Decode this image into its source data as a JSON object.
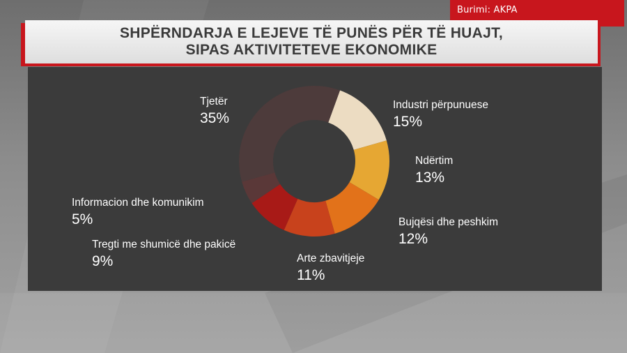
{
  "source": {
    "label": "Burimi: AKPA"
  },
  "title": {
    "line1": "SHPËRNDARJA E LEJEVE TË PUNËS PËR TË HUAJT,",
    "line2": "SIPAS AKTIVITETEVE EKONOMIKE"
  },
  "chart_data": {
    "type": "pie",
    "variant": "donut",
    "unit": "%",
    "slices": [
      {
        "name": "Industri përpunuese",
        "value": 15,
        "label": "15%",
        "color": "#ecdcc2"
      },
      {
        "name": "Ndërtim",
        "value": 13,
        "label": "13%",
        "color": "#e6a733"
      },
      {
        "name": "Bujqësi dhe peshkim",
        "value": 12,
        "label": "12%",
        "color": "#e2721a"
      },
      {
        "name": "Arte zbavitjeje",
        "value": 11,
        "label": "11%",
        "color": "#c8421c"
      },
      {
        "name": "Tregti me shumicë dhe pakicë",
        "value": 9,
        "label": "9%",
        "color": "#a81a17"
      },
      {
        "name": "Informacion dhe komunikim",
        "value": 5,
        "label": "5%",
        "color": "#5a3838"
      },
      {
        "name": "Tjetër",
        "value": 35,
        "label": "35%",
        "color": "#4d3b3b"
      }
    ]
  }
}
